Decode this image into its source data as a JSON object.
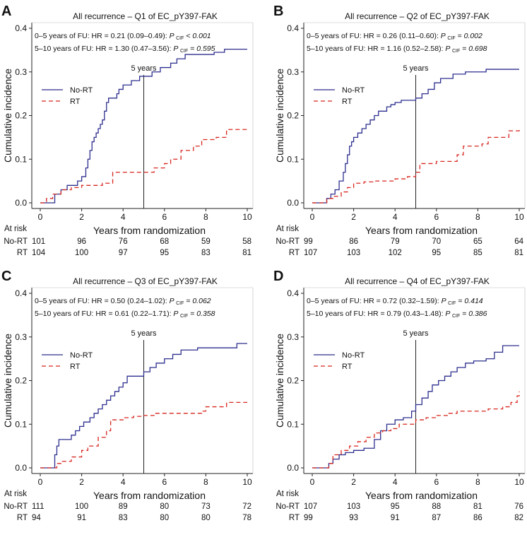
{
  "figure": {
    "at_risk_heading": "At risk",
    "five_year_label": "5 years",
    "x_ticks": [
      0,
      2,
      4,
      6,
      8,
      10
    ],
    "y_ticks": [
      "0.0",
      "0.1",
      "0.2",
      "0.3",
      "0.4"
    ],
    "series_colors": {
      "No-RT": "#2d2f8e",
      "RT": "#d7261e"
    }
  },
  "chart_data": [
    {
      "type": "line",
      "panel": "A",
      "title": "All recurrence – Q1 of EC_pY397-FAK",
      "xlabel": "Years from randomization",
      "ylabel": "Cumulative incidence",
      "xlim": [
        0,
        10
      ],
      "ylim": [
        0,
        0.4
      ],
      "annotations": [
        {
          "prefix": "0–5 years of FU: HR = 0.21 (0.09–0.49): ",
          "p_label": "P",
          "p_sub": "CIF",
          "p_value": "< 0.001"
        },
        {
          "prefix": "5–10 years of FU: HR = 1.30 (0.47–3.56): ",
          "p_label": "P",
          "p_sub": "CIF",
          "p_value": "= 0.595"
        }
      ],
      "legend": [
        "No-RT",
        "RT"
      ],
      "series": [
        {
          "name": "No-RT",
          "x": [
            0,
            0.5,
            0.7,
            1.0,
            1.3,
            1.6,
            1.8,
            2.0,
            2.2,
            2.3,
            2.4,
            2.5,
            2.6,
            2.7,
            2.8,
            2.9,
            3.0,
            3.1,
            3.2,
            3.3,
            3.5,
            3.7,
            3.8,
            3.9,
            4.0,
            4.2,
            4.4,
            4.6,
            4.8,
            5.1,
            5.4,
            5.8,
            6.3,
            6.6,
            7.0,
            7.8,
            8.4,
            8.9,
            10.0
          ],
          "y": [
            0,
            0,
            0.02,
            0.03,
            0.04,
            0.04,
            0.05,
            0.06,
            0.08,
            0.1,
            0.12,
            0.14,
            0.15,
            0.16,
            0.17,
            0.18,
            0.19,
            0.21,
            0.23,
            0.24,
            0.24,
            0.25,
            0.26,
            0.26,
            0.27,
            0.27,
            0.28,
            0.28,
            0.29,
            0.29,
            0.3,
            0.31,
            0.32,
            0.33,
            0.34,
            0.34,
            0.345,
            0.352,
            0.352
          ]
        },
        {
          "name": "RT",
          "x": [
            0,
            0.3,
            0.6,
            1.0,
            1.5,
            2.0,
            3.0,
            3.5,
            4.5,
            5.0,
            5.5,
            6.0,
            6.3,
            6.8,
            7.4,
            7.8,
            8.5,
            9.0,
            10.0
          ],
          "y": [
            0,
            0.01,
            0.02,
            0.03,
            0.035,
            0.04,
            0.045,
            0.07,
            0.07,
            0.07,
            0.08,
            0.09,
            0.1,
            0.12,
            0.13,
            0.145,
            0.15,
            0.168,
            0.168
          ]
        }
      ],
      "at_risk": [
        {
          "name": "No-RT",
          "counts": [
            101,
            96,
            76,
            68,
            59,
            58
          ]
        },
        {
          "name": "RT",
          "counts": [
            104,
            100,
            97,
            95,
            83,
            81
          ]
        }
      ]
    },
    {
      "type": "line",
      "panel": "B",
      "title": "All recurrence – Q2 of EC_pY397-FAK",
      "xlabel": "Years from randomization",
      "ylabel": "Cumulative incidence",
      "xlim": [
        0,
        10
      ],
      "ylim": [
        0,
        0.4
      ],
      "annotations": [
        {
          "prefix": "0–5 years of FU: HR = 0.26 (0.11–0.60): ",
          "p_label": "P",
          "p_sub": "CIF",
          "p_value": "= 0.002"
        },
        {
          "prefix": "5–10 years of FU: HR = 1.16 (0.52–2.58): ",
          "p_label": "P",
          "p_sub": "CIF",
          "p_value": "= 0.698"
        }
      ],
      "legend": [
        "No-RT",
        "RT"
      ],
      "series": [
        {
          "name": "No-RT",
          "x": [
            0,
            0.7,
            0.9,
            1.1,
            1.3,
            1.5,
            1.6,
            1.7,
            1.8,
            1.9,
            2.0,
            2.2,
            2.4,
            2.6,
            2.8,
            3.0,
            3.2,
            3.4,
            3.6,
            3.8,
            4.0,
            4.3,
            4.6,
            5.0,
            5.3,
            5.6,
            5.9,
            6.2,
            6.8,
            7.4,
            8.4,
            10.0
          ],
          "y": [
            0,
            0.01,
            0.02,
            0.03,
            0.05,
            0.07,
            0.09,
            0.11,
            0.13,
            0.14,
            0.15,
            0.16,
            0.17,
            0.18,
            0.19,
            0.2,
            0.21,
            0.21,
            0.22,
            0.225,
            0.23,
            0.235,
            0.235,
            0.24,
            0.25,
            0.26,
            0.275,
            0.285,
            0.295,
            0.3,
            0.306,
            0.306
          ]
        },
        {
          "name": "RT",
          "x": [
            0,
            0.7,
            1.0,
            1.4,
            1.7,
            2.0,
            2.5,
            3.0,
            4.0,
            4.6,
            5.0,
            5.2,
            6.0,
            7.0,
            7.3,
            8.2,
            8.5,
            9.5,
            10.0
          ],
          "y": [
            0,
            0.01,
            0.015,
            0.025,
            0.035,
            0.045,
            0.048,
            0.05,
            0.055,
            0.06,
            0.07,
            0.09,
            0.095,
            0.11,
            0.13,
            0.135,
            0.15,
            0.165,
            0.172
          ]
        }
      ],
      "at_risk": [
        {
          "name": "No-RT",
          "counts": [
            99,
            86,
            79,
            70,
            65,
            64
          ]
        },
        {
          "name": "RT",
          "counts": [
            107,
            103,
            102,
            95,
            85,
            81
          ]
        }
      ]
    },
    {
      "type": "line",
      "panel": "C",
      "title": "All recurrence – Q3 of EC_pY397-FAK",
      "xlabel": "Years from randomization",
      "ylabel": "Cumulative incidence",
      "xlim": [
        0,
        10
      ],
      "ylim": [
        0,
        0.4
      ],
      "annotations": [
        {
          "prefix": "0–5 years of FU: HR = 0.50 (0.24–1.02): ",
          "p_label": "P",
          "p_sub": "CIF",
          "p_value": "= 0.062"
        },
        {
          "prefix": "5–10 years of FU: HR = 0.61 (0.22–1.71): ",
          "p_label": "P",
          "p_sub": "CIF",
          "p_value": "= 0.358"
        }
      ],
      "legend": [
        "No-RT",
        "RT"
      ],
      "series": [
        {
          "name": "No-RT",
          "x": [
            0,
            0.7,
            0.8,
            0.9,
            1.1,
            1.5,
            1.7,
            1.9,
            2.1,
            2.4,
            2.6,
            2.8,
            3.0,
            3.2,
            3.4,
            3.6,
            3.8,
            4.0,
            4.2,
            4.5,
            4.8,
            5.0,
            5.3,
            5.6,
            6.0,
            6.4,
            6.8,
            7.6,
            9.5,
            10.0
          ],
          "y": [
            0,
            0.03,
            0.05,
            0.065,
            0.065,
            0.075,
            0.085,
            0.095,
            0.105,
            0.115,
            0.125,
            0.135,
            0.145,
            0.155,
            0.165,
            0.175,
            0.185,
            0.195,
            0.21,
            0.21,
            0.21,
            0.22,
            0.23,
            0.24,
            0.25,
            0.26,
            0.27,
            0.275,
            0.285,
            0.285
          ]
        },
        {
          "name": "RT",
          "x": [
            0,
            0.8,
            1.0,
            1.5,
            2.0,
            2.3,
            2.8,
            3.2,
            3.4,
            4.0,
            4.5,
            5.0,
            5.5,
            7.8,
            8.0,
            9.0,
            10.0
          ],
          "y": [
            0,
            0.01,
            0.015,
            0.025,
            0.04,
            0.05,
            0.07,
            0.085,
            0.11,
            0.115,
            0.118,
            0.12,
            0.125,
            0.13,
            0.14,
            0.15,
            0.15
          ]
        }
      ],
      "at_risk": [
        {
          "name": "No-RT",
          "counts": [
            111,
            100,
            89,
            80,
            73,
            72
          ]
        },
        {
          "name": "RT",
          "counts": [
            94,
            91,
            83,
            80,
            80,
            78
          ]
        }
      ]
    },
    {
      "type": "line",
      "panel": "D",
      "title": "All recurrence – Q4 of EC_pY397-FAK",
      "xlabel": "Years from randomization",
      "ylabel": "Cumulative incidence",
      "xlim": [
        0,
        10
      ],
      "ylim": [
        0,
        0.4
      ],
      "annotations": [
        {
          "prefix": "0–5 years of FU: HR = 0.72 (0.32–1.59): ",
          "p_label": "P",
          "p_sub": "CIF",
          "p_value": "= 0.414"
        },
        {
          "prefix": "5–10 years of FU: HR = 0.79 (0.43–1.48): ",
          "p_label": "P",
          "p_sub": "CIF",
          "p_value": "= 0.386"
        }
      ],
      "legend": [
        "No-RT",
        "RT"
      ],
      "series": [
        {
          "name": "No-RT",
          "x": [
            0,
            0.8,
            1.0,
            1.3,
            1.6,
            2.0,
            2.5,
            3.0,
            3.3,
            3.6,
            4.0,
            4.4,
            4.8,
            5.0,
            5.3,
            5.6,
            5.8,
            6.1,
            6.4,
            6.7,
            7.0,
            7.4,
            7.8,
            8.4,
            8.8,
            9.2,
            10.0
          ],
          "y": [
            0,
            0.01,
            0.02,
            0.03,
            0.035,
            0.04,
            0.045,
            0.065,
            0.085,
            0.1,
            0.11,
            0.115,
            0.13,
            0.145,
            0.16,
            0.175,
            0.19,
            0.2,
            0.21,
            0.22,
            0.23,
            0.24,
            0.245,
            0.25,
            0.265,
            0.28,
            0.28
          ]
        },
        {
          "name": "RT",
          "x": [
            0,
            0.8,
            1.0,
            1.4,
            1.8,
            2.2,
            2.6,
            3.0,
            3.4,
            3.8,
            4.2,
            4.8,
            5.0,
            5.5,
            6.0,
            6.6,
            7.0,
            8.5,
            9.2,
            9.6,
            9.9,
            10.0
          ],
          "y": [
            0,
            0.01,
            0.03,
            0.04,
            0.05,
            0.06,
            0.07,
            0.08,
            0.085,
            0.09,
            0.1,
            0.1,
            0.11,
            0.115,
            0.12,
            0.125,
            0.13,
            0.135,
            0.14,
            0.15,
            0.165,
            0.175
          ]
        }
      ],
      "at_risk": [
        {
          "name": "No-RT",
          "counts": [
            107,
            103,
            95,
            88,
            81,
            76
          ]
        },
        {
          "name": "RT",
          "counts": [
            99,
            93,
            91,
            87,
            86,
            82
          ]
        }
      ]
    }
  ]
}
